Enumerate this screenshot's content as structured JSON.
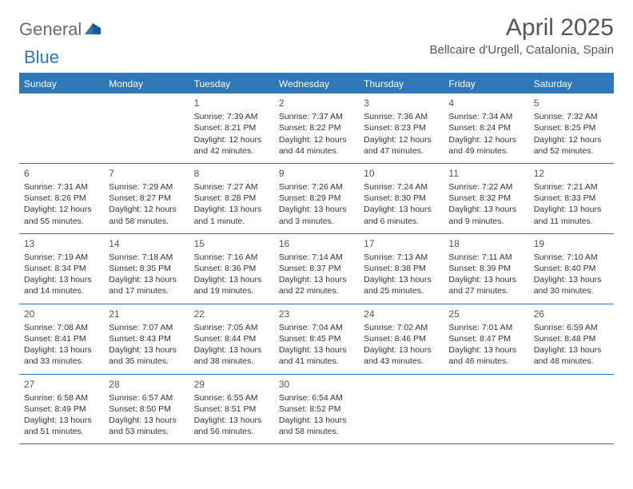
{
  "logo": {
    "text1": "General",
    "text2": "Blue"
  },
  "title": "April 2025",
  "location": "Bellcaire d'Urgell, Catalonia, Spain",
  "colors": {
    "accent": "#2f78b7",
    "text": "#333333",
    "muted": "#555555",
    "logo_gray": "#6b6b6b",
    "background": "#ffffff"
  },
  "weekdays": [
    "Sunday",
    "Monday",
    "Tuesday",
    "Wednesday",
    "Thursday",
    "Friday",
    "Saturday"
  ],
  "weeks": [
    [
      null,
      null,
      {
        "n": "1",
        "sr": "Sunrise: 7:39 AM",
        "ss": "Sunset: 8:21 PM",
        "d1": "Daylight: 12 hours",
        "d2": "and 42 minutes."
      },
      {
        "n": "2",
        "sr": "Sunrise: 7:37 AM",
        "ss": "Sunset: 8:22 PM",
        "d1": "Daylight: 12 hours",
        "d2": "and 44 minutes."
      },
      {
        "n": "3",
        "sr": "Sunrise: 7:36 AM",
        "ss": "Sunset: 8:23 PM",
        "d1": "Daylight: 12 hours",
        "d2": "and 47 minutes."
      },
      {
        "n": "4",
        "sr": "Sunrise: 7:34 AM",
        "ss": "Sunset: 8:24 PM",
        "d1": "Daylight: 12 hours",
        "d2": "and 49 minutes."
      },
      {
        "n": "5",
        "sr": "Sunrise: 7:32 AM",
        "ss": "Sunset: 8:25 PM",
        "d1": "Daylight: 12 hours",
        "d2": "and 52 minutes."
      }
    ],
    [
      {
        "n": "6",
        "sr": "Sunrise: 7:31 AM",
        "ss": "Sunset: 8:26 PM",
        "d1": "Daylight: 12 hours",
        "d2": "and 55 minutes."
      },
      {
        "n": "7",
        "sr": "Sunrise: 7:29 AM",
        "ss": "Sunset: 8:27 PM",
        "d1": "Daylight: 12 hours",
        "d2": "and 58 minutes."
      },
      {
        "n": "8",
        "sr": "Sunrise: 7:27 AM",
        "ss": "Sunset: 8:28 PM",
        "d1": "Daylight: 13 hours",
        "d2": "and 1 minute."
      },
      {
        "n": "9",
        "sr": "Sunrise: 7:26 AM",
        "ss": "Sunset: 8:29 PM",
        "d1": "Daylight: 13 hours",
        "d2": "and 3 minutes."
      },
      {
        "n": "10",
        "sr": "Sunrise: 7:24 AM",
        "ss": "Sunset: 8:30 PM",
        "d1": "Daylight: 13 hours",
        "d2": "and 6 minutes."
      },
      {
        "n": "11",
        "sr": "Sunrise: 7:22 AM",
        "ss": "Sunset: 8:32 PM",
        "d1": "Daylight: 13 hours",
        "d2": "and 9 minutes."
      },
      {
        "n": "12",
        "sr": "Sunrise: 7:21 AM",
        "ss": "Sunset: 8:33 PM",
        "d1": "Daylight: 13 hours",
        "d2": "and 11 minutes."
      }
    ],
    [
      {
        "n": "13",
        "sr": "Sunrise: 7:19 AM",
        "ss": "Sunset: 8:34 PM",
        "d1": "Daylight: 13 hours",
        "d2": "and 14 minutes."
      },
      {
        "n": "14",
        "sr": "Sunrise: 7:18 AM",
        "ss": "Sunset: 8:35 PM",
        "d1": "Daylight: 13 hours",
        "d2": "and 17 minutes."
      },
      {
        "n": "15",
        "sr": "Sunrise: 7:16 AM",
        "ss": "Sunset: 8:36 PM",
        "d1": "Daylight: 13 hours",
        "d2": "and 19 minutes."
      },
      {
        "n": "16",
        "sr": "Sunrise: 7:14 AM",
        "ss": "Sunset: 8:37 PM",
        "d1": "Daylight: 13 hours",
        "d2": "and 22 minutes."
      },
      {
        "n": "17",
        "sr": "Sunrise: 7:13 AM",
        "ss": "Sunset: 8:38 PM",
        "d1": "Daylight: 13 hours",
        "d2": "and 25 minutes."
      },
      {
        "n": "18",
        "sr": "Sunrise: 7:11 AM",
        "ss": "Sunset: 8:39 PM",
        "d1": "Daylight: 13 hours",
        "d2": "and 27 minutes."
      },
      {
        "n": "19",
        "sr": "Sunrise: 7:10 AM",
        "ss": "Sunset: 8:40 PM",
        "d1": "Daylight: 13 hours",
        "d2": "and 30 minutes."
      }
    ],
    [
      {
        "n": "20",
        "sr": "Sunrise: 7:08 AM",
        "ss": "Sunset: 8:41 PM",
        "d1": "Daylight: 13 hours",
        "d2": "and 33 minutes."
      },
      {
        "n": "21",
        "sr": "Sunrise: 7:07 AM",
        "ss": "Sunset: 8:43 PM",
        "d1": "Daylight: 13 hours",
        "d2": "and 35 minutes."
      },
      {
        "n": "22",
        "sr": "Sunrise: 7:05 AM",
        "ss": "Sunset: 8:44 PM",
        "d1": "Daylight: 13 hours",
        "d2": "and 38 minutes."
      },
      {
        "n": "23",
        "sr": "Sunrise: 7:04 AM",
        "ss": "Sunset: 8:45 PM",
        "d1": "Daylight: 13 hours",
        "d2": "and 41 minutes."
      },
      {
        "n": "24",
        "sr": "Sunrise: 7:02 AM",
        "ss": "Sunset: 8:46 PM",
        "d1": "Daylight: 13 hours",
        "d2": "and 43 minutes."
      },
      {
        "n": "25",
        "sr": "Sunrise: 7:01 AM",
        "ss": "Sunset: 8:47 PM",
        "d1": "Daylight: 13 hours",
        "d2": "and 46 minutes."
      },
      {
        "n": "26",
        "sr": "Sunrise: 6:59 AM",
        "ss": "Sunset: 8:48 PM",
        "d1": "Daylight: 13 hours",
        "d2": "and 48 minutes."
      }
    ],
    [
      {
        "n": "27",
        "sr": "Sunrise: 6:58 AM",
        "ss": "Sunset: 8:49 PM",
        "d1": "Daylight: 13 hours",
        "d2": "and 51 minutes."
      },
      {
        "n": "28",
        "sr": "Sunrise: 6:57 AM",
        "ss": "Sunset: 8:50 PM",
        "d1": "Daylight: 13 hours",
        "d2": "and 53 minutes."
      },
      {
        "n": "29",
        "sr": "Sunrise: 6:55 AM",
        "ss": "Sunset: 8:51 PM",
        "d1": "Daylight: 13 hours",
        "d2": "and 56 minutes."
      },
      {
        "n": "30",
        "sr": "Sunrise: 6:54 AM",
        "ss": "Sunset: 8:52 PM",
        "d1": "Daylight: 13 hours",
        "d2": "and 58 minutes."
      },
      null,
      null,
      null
    ]
  ]
}
